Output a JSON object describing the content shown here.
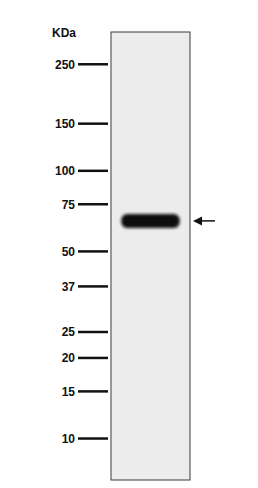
{
  "chart_data": {
    "type": "blot",
    "ylabel": "KDa",
    "categories": [
      null
    ],
    "values": [
      65
    ],
    "color": "#111111",
    "log": "y",
    "ylim": [
      7,
      330
    ],
    "yticks": [
      250,
      150,
      100,
      75,
      50,
      37,
      25,
      20,
      15,
      10
    ],
    "tick_labels": "y"
  }
}
